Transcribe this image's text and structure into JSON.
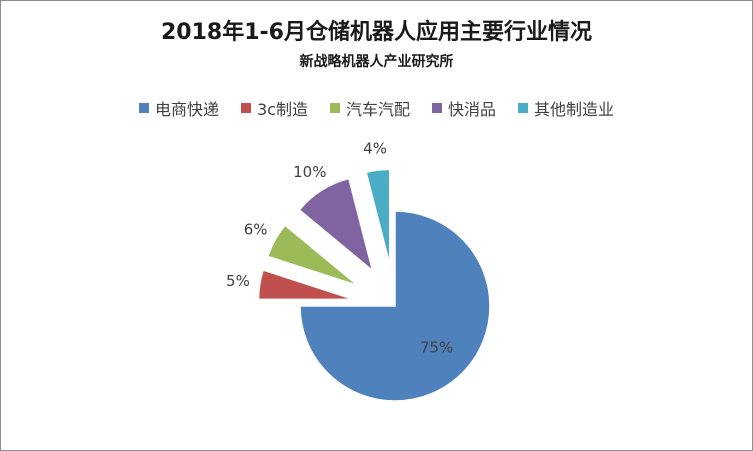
{
  "chart_data": {
    "type": "pie",
    "title": "2018年1-6月仓储机器人应用主要行业情况",
    "subtitle": "新战略机器人产业研究所",
    "legend_position": "top",
    "slices": [
      {
        "name": "电商快递",
        "value": 75,
        "label": "75%",
        "color": "#4f81bd",
        "exploded": false
      },
      {
        "name": "3c制造",
        "value": 5,
        "label": "5%",
        "color": "#c0504d",
        "exploded": true
      },
      {
        "name": "汽车汽配",
        "value": 6,
        "label": "6%",
        "color": "#9bbb59",
        "exploded": true
      },
      {
        "name": "快消品",
        "value": 10,
        "label": "10%",
        "color": "#8064a2",
        "exploded": true
      },
      {
        "name": "其他制造业",
        "value": 4,
        "label": "4%",
        "color": "#4bacc6",
        "exploded": true
      }
    ]
  }
}
